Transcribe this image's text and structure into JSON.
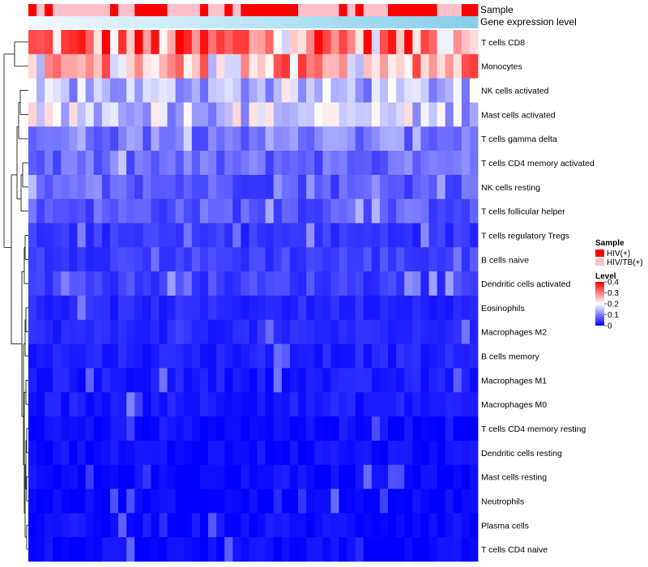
{
  "chart_data": {
    "type": "heatmap",
    "title": "",
    "column_annotations": [
      {
        "name": "Sample",
        "label": "Sample"
      },
      {
        "name": "Gene expression level",
        "label": "Gene expression level"
      }
    ],
    "rows": [
      "T cells CD8",
      "Monocytes",
      "NK cells activated",
      "Mast cells activated",
      "T cells gamma delta",
      "T cells CD4 memory activated",
      "NK cells resting",
      "T cells follicular helper",
      "T cells regulatory  Tregs",
      "B cells naive",
      "Dendritic cells activated",
      "Eosinophils",
      "Macrophages M2",
      "B cells memory",
      "Macrophages M1",
      "Macrophages M0",
      "T cells CD4 memory resting",
      "Dendritic cells resting",
      "Mast cells resting",
      "Neutrophils",
      "Plasma cells",
      "T cells CD4 naive"
    ],
    "num_columns": 55,
    "sample_groups": [
      0,
      1,
      0,
      1,
      1,
      1,
      1,
      1,
      1,
      1,
      0,
      1,
      1,
      0,
      0,
      0,
      0,
      1,
      1,
      1,
      1,
      0,
      1,
      1,
      0,
      1,
      0,
      0,
      0,
      0,
      0,
      0,
      0,
      1,
      1,
      1,
      1,
      1,
      0,
      1,
      0,
      1,
      1,
      1,
      0,
      0,
      0,
      0,
      0,
      0,
      1,
      1,
      1,
      0,
      0
    ],
    "mean_levels": [
      0.3,
      0.25,
      0.14,
      0.16,
      0.1,
      0.08,
      0.07,
      0.07,
      0.04,
      0.05,
      0.05,
      0.03,
      0.03,
      0.025,
      0.02,
      0.02,
      0.01,
      0.01,
      0.005,
      0.003,
      0.01,
      0.005
    ],
    "sample_legend": {
      "title": "Sample",
      "entries": [
        {
          "label": "HIV(+)",
          "color": "#ff0000"
        },
        {
          "label": "HIV/TB(+)",
          "color": "#ffc0cb"
        }
      ]
    },
    "level_legend": {
      "title": "Level",
      "ticks": [
        "0.4",
        "0.3",
        "0.2",
        "0.1",
        "0"
      ],
      "tick_values": [
        0.4,
        0.3,
        0.2,
        0.1,
        0
      ],
      "range": [
        0,
        0.4
      ],
      "colors": [
        "#0000ff",
        "#ffffff",
        "#ff0000"
      ]
    },
    "expression_gradient": [
      "#f0f8ff",
      "#87ceeb"
    ]
  }
}
